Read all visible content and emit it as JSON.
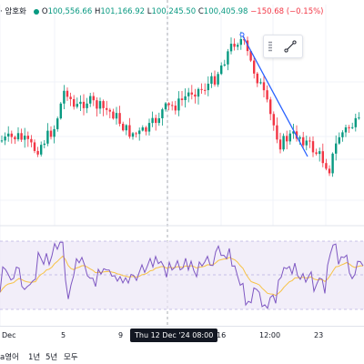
{
  "legend": {
    "symbol": "· 암호화",
    "open_label": "O",
    "open": "100,556.66",
    "high_label": "H",
    "high": "101,166.92",
    "low_label": "L",
    "low": "100,245.50",
    "close_label": "C",
    "close": "100,405.98",
    "change": "−150.68 (−0.15%)"
  },
  "time_axis": {
    "labels": [
      "Dec",
      "5",
      "9",
      "16",
      "12:00",
      "23"
    ],
    "crosshair_label": "Thu 12 Dec '24  08:00"
  },
  "bottom_toolbar": {
    "range_partial": "a영어",
    "items": [
      "1년",
      "5년",
      "모두"
    ]
  },
  "colors": {
    "up": "#089981",
    "down": "#f23645",
    "trendline": "#2962ff",
    "indicator_line": "#7e57c2",
    "indicator_ma": "#f7c244",
    "indicator_band": "#ede7f6"
  },
  "icons": {
    "trend_tool": "trendline-icon",
    "drag_handle": "drag-handle-icon"
  }
}
